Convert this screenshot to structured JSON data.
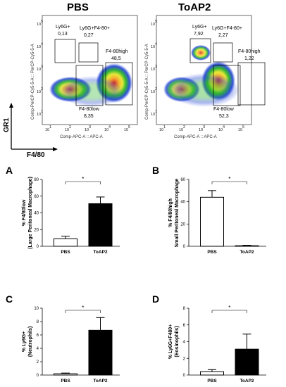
{
  "flow": {
    "y_axis_label": "Comp-PerCP-Cy5-5-A :: PerCP-Cy5-5-A",
    "x_axis_label": "Comp-APC-A :: APC-A",
    "x_ticks": [
      "10",
      "10",
      "10",
      "10",
      "10"
    ],
    "x_exps": [
      "1",
      "2",
      "3",
      "4",
      "5"
    ],
    "y_ticks": [
      "10",
      "10",
      "10",
      "10",
      "10"
    ],
    "y_exps": [
      "5",
      "4",
      "3",
      "2",
      "1"
    ],
    "legend_y": "GR1",
    "legend_x": "F4/80",
    "panels": [
      {
        "title": "PBS",
        "gates": [
          {
            "name": "Ly6G+",
            "value": "0,13"
          },
          {
            "name": "Ly6G+F4-80+",
            "value": "0,27"
          },
          {
            "name": "F4-80high",
            "value": "48,5"
          },
          {
            "name": "F4-80low",
            "value": "8,35"
          }
        ]
      },
      {
        "title": "ToAP2",
        "gates": [
          {
            "name": "Ly6G+",
            "value": "7,92"
          },
          {
            "name": "Ly6G+F4-80+",
            "value": "2,27"
          },
          {
            "name": "F4-80high",
            "value": "1,22"
          },
          {
            "name": "F4-80low",
            "value": "52,3"
          }
        ]
      }
    ]
  },
  "chart_data": [
    {
      "type": "bar",
      "panel": "A",
      "categories": [
        "PBS",
        "ToAP2"
      ],
      "values": [
        9,
        51
      ],
      "errors": [
        3,
        8
      ],
      "ylim": [
        0,
        80
      ],
      "yticks": [
        "0",
        "20",
        "40",
        "60",
        "80"
      ],
      "ylabel": "% F4/80low",
      "ylabel2": "(Large Peritoneal Macrophage)",
      "significance": "*",
      "fills": [
        "#ffffff",
        "#000000"
      ]
    },
    {
      "type": "bar",
      "panel": "B",
      "categories": [
        "PBS",
        "ToAP2"
      ],
      "values": [
        44,
        0.5
      ],
      "errors": [
        6,
        0.4
      ],
      "ylim": [
        0,
        60
      ],
      "yticks": [
        "0",
        "20",
        "40",
        "60"
      ],
      "ylabel": "% F4/80high",
      "ylabel2": "Small Peritoneal Macrophage",
      "significance": "*",
      "fills": [
        "#ffffff",
        "#000000"
      ]
    },
    {
      "type": "bar",
      "panel": "C",
      "categories": [
        "PBS",
        "ToAP2"
      ],
      "values": [
        0.2,
        6.7
      ],
      "errors": [
        0.1,
        1.9
      ],
      "ylim": [
        0,
        10
      ],
      "yticks": [
        "0",
        "2",
        "4",
        "6",
        "8",
        "10"
      ],
      "ylabel": "% Ly6G+",
      "ylabel2": "(Neutrophils)",
      "significance": "*",
      "fills": [
        "#ffffff",
        "#000000"
      ]
    },
    {
      "type": "bar",
      "panel": "D",
      "categories": [
        "PBS",
        "ToAP2"
      ],
      "values": [
        0.4,
        3.1
      ],
      "errors": [
        0.25,
        1.8
      ],
      "ylim": [
        0,
        8
      ],
      "yticks": [
        "0",
        "2",
        "4",
        "6",
        "8"
      ],
      "ylabel": "% Ly6G+F480+",
      "ylabel2": "(Eosinophils)",
      "significance": "*",
      "fills": [
        "#ffffff",
        "#000000"
      ]
    }
  ]
}
